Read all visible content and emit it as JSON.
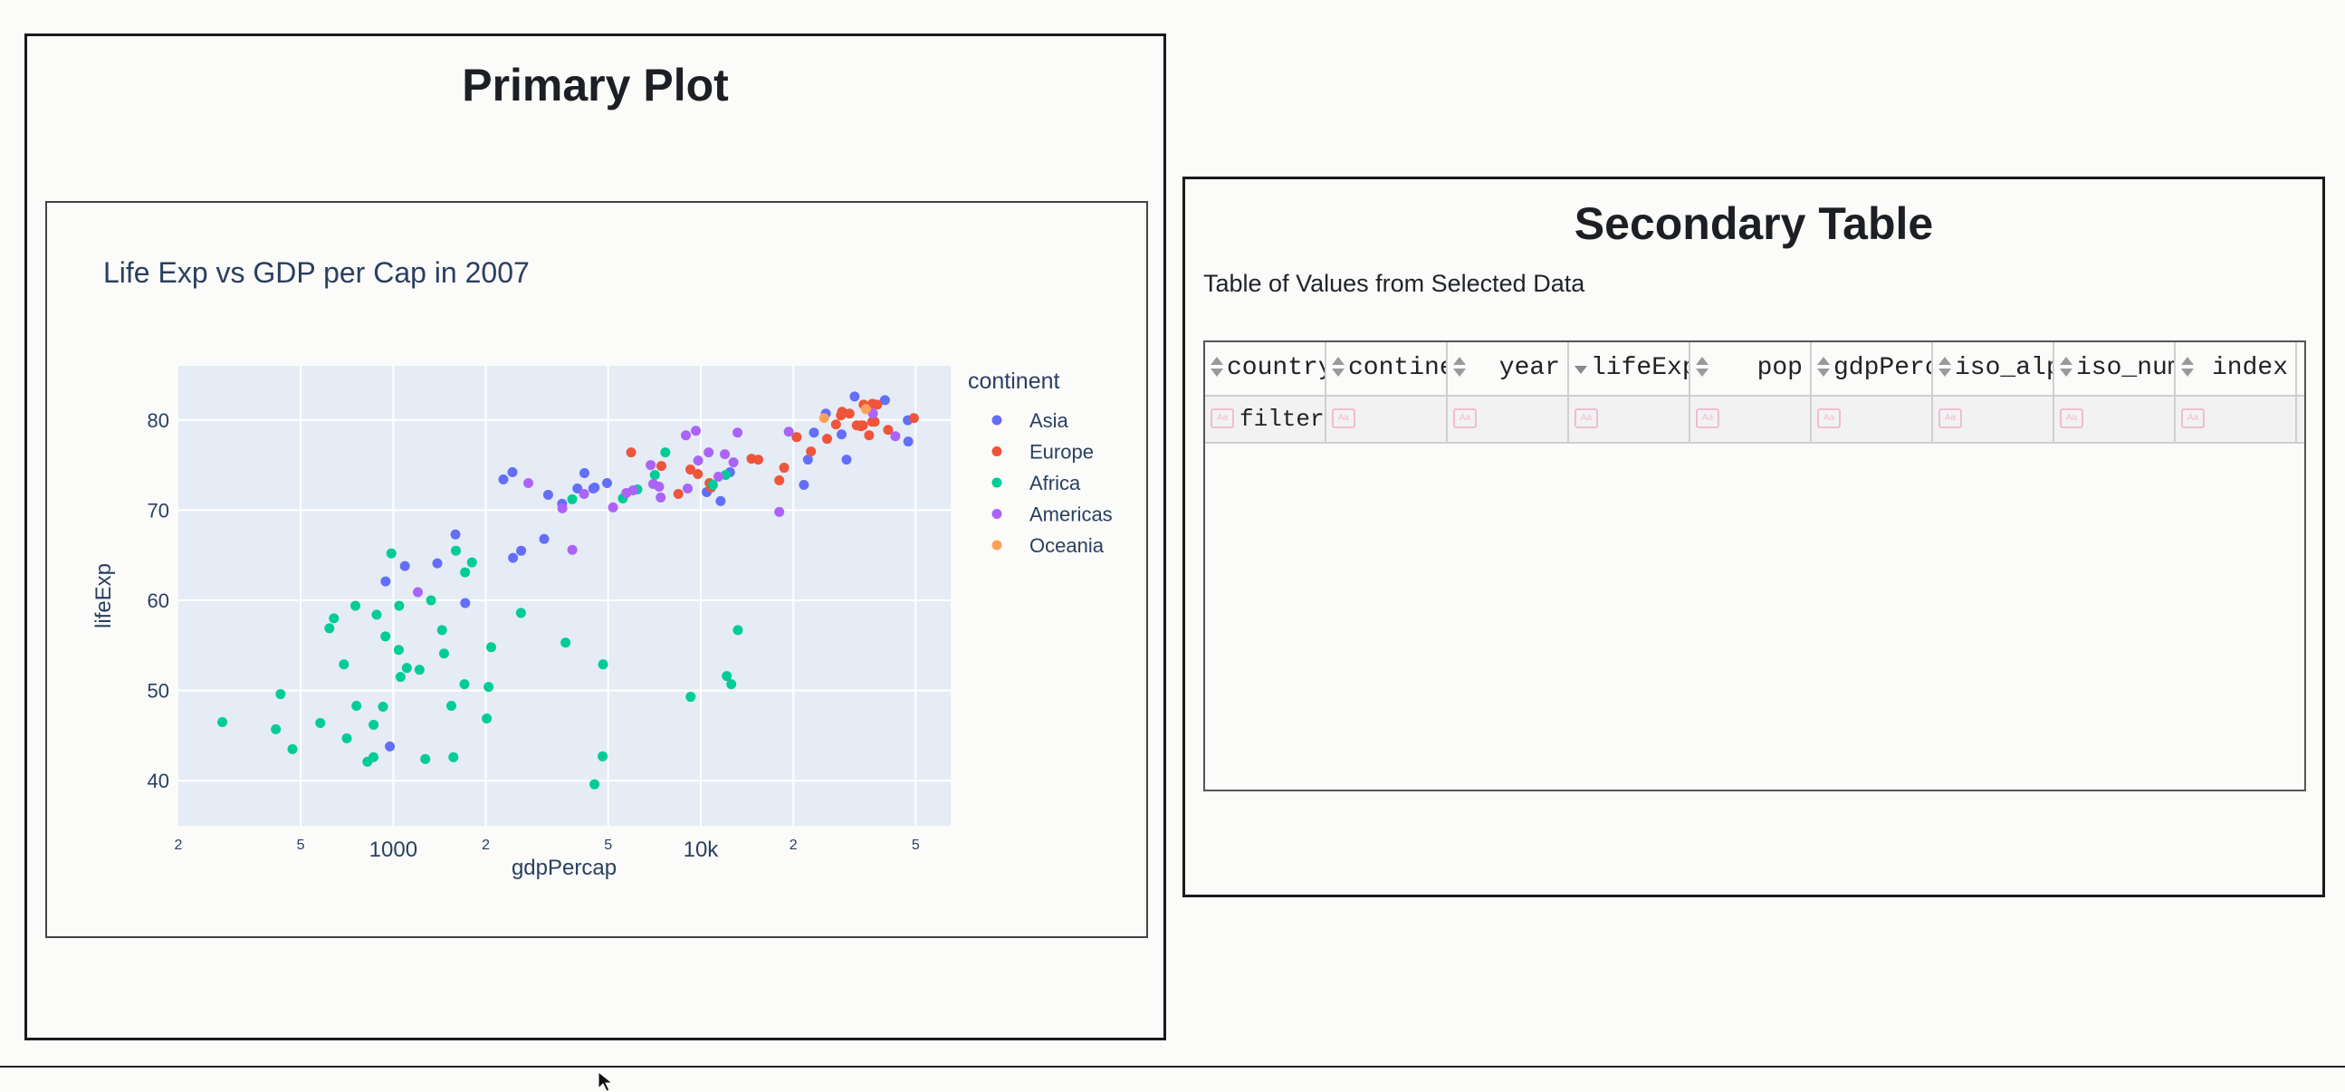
{
  "primary": {
    "title": "Primary Plot"
  },
  "secondary": {
    "title": "Secondary Table",
    "caption": "Table of Values from Selected Data",
    "columns": [
      {
        "label": "country",
        "align": "left",
        "sort": "both"
      },
      {
        "label": "continent",
        "align": "left",
        "sort": "both"
      },
      {
        "label": "year",
        "align": "right",
        "sort": "both"
      },
      {
        "label": "lifeExp",
        "align": "left",
        "sort": "desc"
      },
      {
        "label": "pop",
        "align": "right",
        "sort": "both"
      },
      {
        "label": "gdpPercap",
        "align": "left",
        "sort": "both"
      },
      {
        "label": "iso_alpha",
        "align": "left",
        "sort": "both"
      },
      {
        "label": "iso_num",
        "align": "left",
        "sort": "both"
      },
      {
        "label": "index",
        "align": "right",
        "sort": "both"
      }
    ],
    "filter_placeholder": "filter",
    "case_icon": "Aa"
  },
  "chart_data": {
    "type": "scatter",
    "title": "Life Exp vs GDP per Cap in 2007",
    "xlabel": "gdpPercap",
    "ylabel": "lifeExp",
    "x_scale": "log",
    "xlim": [
      200,
      65000
    ],
    "ylim": [
      35,
      86
    ],
    "x_ticks": [
      {
        "value": 200,
        "label": "2"
      },
      {
        "value": 500,
        "label": "5"
      },
      {
        "value": 1000,
        "label": "1000"
      },
      {
        "value": 2000,
        "label": "2"
      },
      {
        "value": 5000,
        "label": "5"
      },
      {
        "value": 10000,
        "label": "10k"
      },
      {
        "value": 20000,
        "label": "2"
      },
      {
        "value": 50000,
        "label": "5"
      }
    ],
    "y_ticks": [
      40,
      50,
      60,
      70,
      80
    ],
    "grid": true,
    "legend_title": "continent",
    "legend_position": "right",
    "series": [
      {
        "name": "Asia",
        "color": "#636efa",
        "points": [
          [
            974.6,
            43.8
          ],
          [
            29796,
            75.6
          ],
          [
            1391,
            64.1
          ],
          [
            1714,
            59.7
          ],
          [
            4959,
            73.0
          ],
          [
            39725,
            82.2
          ],
          [
            2452,
            64.7
          ],
          [
            3541,
            70.7
          ],
          [
            11606,
            71.0
          ],
          [
            4471,
            72.4
          ],
          [
            25523,
            80.7
          ],
          [
            31656,
            82.6
          ],
          [
            4519,
            72.5
          ],
          [
            1593,
            67.3
          ],
          [
            23348,
            78.6
          ],
          [
            47307,
            77.6
          ],
          [
            10461,
            72.0
          ],
          [
            12452,
            74.2
          ],
          [
            3096,
            66.8
          ],
          [
            944,
            62.1
          ],
          [
            1091,
            63.8
          ],
          [
            22316,
            75.6
          ],
          [
            2606,
            65.5
          ],
          [
            3190,
            71.7
          ],
          [
            21655,
            72.8
          ],
          [
            47143,
            79.97
          ],
          [
            28718,
            78.4
          ],
          [
            3970,
            72.4
          ],
          [
            4185,
            74.1
          ],
          [
            2442,
            74.2
          ],
          [
            2281,
            73.4
          ]
        ]
      },
      {
        "name": "Europe",
        "color": "#ef553b",
        "points": [
          [
            5937,
            76.4
          ],
          [
            36126,
            79.8
          ],
          [
            33693,
            79.4
          ],
          [
            7446,
            74.9
          ],
          [
            10681,
            73.0
          ],
          [
            14619,
            75.7
          ],
          [
            22833,
            76.5
          ],
          [
            35278,
            78.3
          ],
          [
            33207,
            79.3
          ],
          [
            30470,
            80.7
          ],
          [
            32170,
            79.4
          ],
          [
            27538,
            79.5
          ],
          [
            18009,
            73.3
          ],
          [
            36181,
            81.8
          ],
          [
            40676,
            78.9
          ],
          [
            28570,
            80.5
          ],
          [
            9254,
            74.5
          ],
          [
            36798,
            79.8
          ],
          [
            49357,
            80.2
          ],
          [
            15390,
            75.6
          ],
          [
            20510,
            78.1
          ],
          [
            10808,
            72.5
          ],
          [
            9787,
            74.0
          ],
          [
            18678,
            74.7
          ],
          [
            25768,
            77.9
          ],
          [
            28821,
            80.9
          ],
          [
            33860,
            81.7
          ],
          [
            37506,
            81.7
          ],
          [
            8458,
            71.8
          ],
          [
            33203,
            79.4
          ]
        ]
      },
      {
        "name": "Africa",
        "color": "#00cc96",
        "points": [
          [
            6223,
            72.3
          ],
          [
            4797,
            42.7
          ],
          [
            1441,
            56.7
          ],
          [
            12570,
            50.7
          ],
          [
            1217,
            52.3
          ],
          [
            430,
            49.6
          ],
          [
            2042,
            50.4
          ],
          [
            706,
            44.7
          ],
          [
            1704,
            50.7
          ],
          [
            986,
            65.2
          ],
          [
            278,
            46.5
          ],
          [
            3633,
            55.3
          ],
          [
            1545,
            48.3
          ],
          [
            2082,
            54.8
          ],
          [
            5581,
            71.3
          ],
          [
            12154,
            51.6
          ],
          [
            641,
            58.0
          ],
          [
            691,
            52.9
          ],
          [
            13206,
            56.7
          ],
          [
            753,
            59.4
          ],
          [
            1327,
            60.0
          ],
          [
            943,
            56.0
          ],
          [
            579,
            46.4
          ],
          [
            1463,
            54.1
          ],
          [
            1569,
            42.6
          ],
          [
            415,
            45.7
          ],
          [
            12057,
            73.9
          ],
          [
            1045,
            59.4
          ],
          [
            759,
            48.3
          ],
          [
            1042,
            54.5
          ],
          [
            1803,
            64.2
          ],
          [
            10957,
            72.8
          ],
          [
            3820,
            71.2
          ],
          [
            824,
            42.1
          ],
          [
            4811,
            52.9
          ],
          [
            620,
            56.9
          ],
          [
            2014,
            46.9
          ],
          [
            7670,
            76.4
          ],
          [
            863,
            46.2
          ],
          [
            1598,
            65.5
          ],
          [
            1712,
            63.1
          ],
          [
            862,
            42.6
          ],
          [
            926,
            48.2
          ],
          [
            9270,
            49.3
          ],
          [
            2602,
            58.6
          ],
          [
            4513,
            39.6
          ],
          [
            1107,
            52.5
          ],
          [
            883,
            58.4
          ],
          [
            7093,
            73.9
          ],
          [
            1056,
            51.5
          ],
          [
            1271,
            42.4
          ],
          [
            470,
            43.5
          ]
        ]
      },
      {
        "name": "Americas",
        "color": "#ab63fa",
        "points": [
          [
            12779,
            75.3
          ],
          [
            3822,
            65.6
          ],
          [
            9066,
            72.4
          ],
          [
            36319,
            80.7
          ],
          [
            13172,
            78.6
          ],
          [
            7007,
            72.9
          ],
          [
            9645,
            78.8
          ],
          [
            8948,
            78.3
          ],
          [
            6025,
            72.2
          ],
          [
            6873,
            75.0
          ],
          [
            5728,
            71.9
          ],
          [
            5186,
            70.3
          ],
          [
            1202,
            60.9
          ],
          [
            3548,
            70.2
          ],
          [
            7321,
            72.6
          ],
          [
            11978,
            76.2
          ],
          [
            2749,
            73.0
          ],
          [
            9809,
            75.5
          ],
          [
            4173,
            71.8
          ],
          [
            7409,
            71.4
          ],
          [
            19329,
            78.7
          ],
          [
            18009,
            69.8
          ],
          [
            42952,
            78.2
          ],
          [
            10611,
            76.4
          ],
          [
            11416,
            73.7
          ]
        ]
      },
      {
        "name": "Oceania",
        "color": "#ffa15a",
        "points": [
          [
            34435,
            81.2
          ],
          [
            25185,
            80.2
          ]
        ]
      }
    ]
  }
}
